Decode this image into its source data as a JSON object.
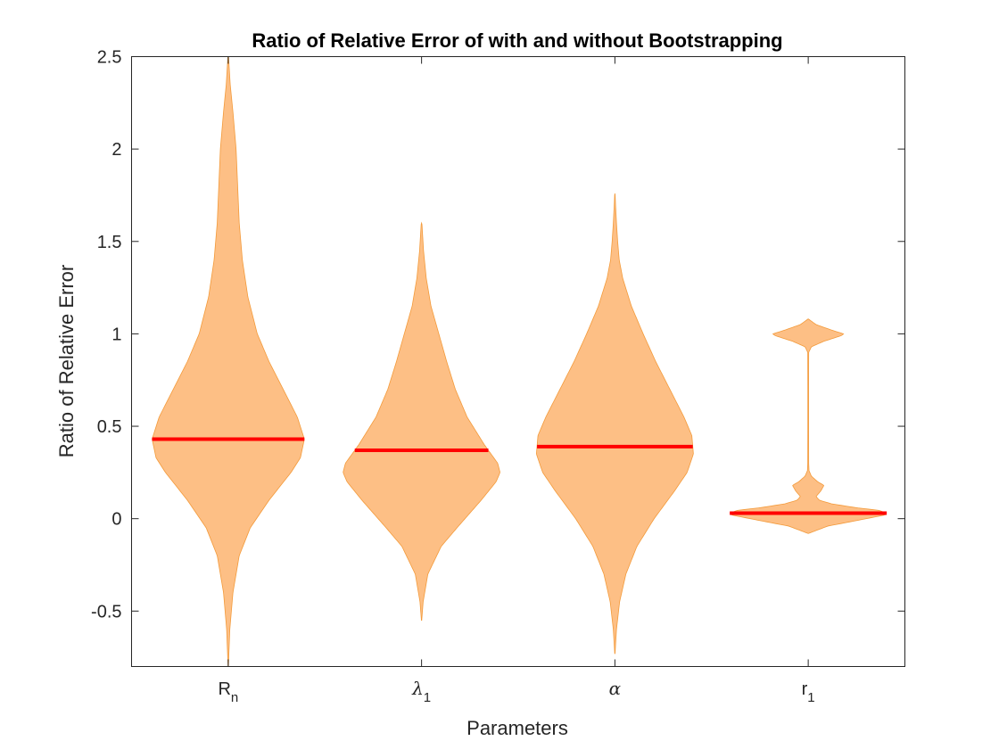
{
  "chart_data": {
    "type": "violin",
    "title": "Ratio of Relative Error of with and without Bootstrapping",
    "xlabel": "Parameters",
    "ylabel": "Ratio of Relative Error",
    "ylim": [
      -0.8,
      2.5
    ],
    "yticks": [
      {
        "value": -0.5,
        "label": "-0.5"
      },
      {
        "value": 0,
        "label": "0"
      },
      {
        "value": 0.5,
        "label": "0.5"
      },
      {
        "value": 1,
        "label": "1"
      },
      {
        "value": 1.5,
        "label": "1.5"
      },
      {
        "value": 2,
        "label": "2"
      },
      {
        "value": 2.5,
        "label": "2.5"
      }
    ],
    "grid": false,
    "fill_color": "#fdbf85",
    "edge_color": "#f39a3a",
    "median_color": "#ff0000",
    "categories": [
      {
        "base": "R",
        "sub": "n",
        "greek": false
      },
      {
        "base": "λ",
        "sub": "1",
        "greek": true
      },
      {
        "base": "α",
        "sub": "",
        "greek": true
      },
      {
        "base": "r",
        "sub": "1",
        "greek": false
      }
    ],
    "series": [
      {
        "median": 0.43,
        "min": -0.8,
        "max": 2.5,
        "density": [
          [
            -0.8,
            0.002
          ],
          [
            -0.6,
            0.02
          ],
          [
            -0.4,
            0.06
          ],
          [
            -0.2,
            0.14
          ],
          [
            -0.05,
            0.28
          ],
          [
            0.1,
            0.52
          ],
          [
            0.25,
            0.8
          ],
          [
            0.33,
            0.92
          ],
          [
            0.43,
            0.97
          ],
          [
            0.55,
            0.88
          ],
          [
            0.7,
            0.7
          ],
          [
            0.85,
            0.52
          ],
          [
            1.0,
            0.37
          ],
          [
            1.2,
            0.25
          ],
          [
            1.4,
            0.18
          ],
          [
            1.6,
            0.14
          ],
          [
            1.8,
            0.12
          ],
          [
            2.0,
            0.1
          ],
          [
            2.2,
            0.06
          ],
          [
            2.35,
            0.025
          ],
          [
            2.5,
            0.004
          ]
        ]
      },
      {
        "median": 0.37,
        "min": -0.55,
        "max": 1.6,
        "density": [
          [
            -0.55,
            0.002
          ],
          [
            -0.45,
            0.02
          ],
          [
            -0.3,
            0.08
          ],
          [
            -0.15,
            0.25
          ],
          [
            -0.05,
            0.45
          ],
          [
            0.1,
            0.76
          ],
          [
            0.2,
            0.95
          ],
          [
            0.25,
            1.0
          ],
          [
            0.3,
            0.97
          ],
          [
            0.4,
            0.8
          ],
          [
            0.55,
            0.58
          ],
          [
            0.7,
            0.43
          ],
          [
            0.85,
            0.32
          ],
          [
            1.0,
            0.22
          ],
          [
            1.15,
            0.12
          ],
          [
            1.3,
            0.06
          ],
          [
            1.45,
            0.025
          ],
          [
            1.6,
            0.004
          ]
        ]
      },
      {
        "median": 0.39,
        "min": -0.73,
        "max": 1.76,
        "density": [
          [
            -0.73,
            0.002
          ],
          [
            -0.6,
            0.02
          ],
          [
            -0.45,
            0.06
          ],
          [
            -0.3,
            0.14
          ],
          [
            -0.15,
            0.28
          ],
          [
            0.0,
            0.5
          ],
          [
            0.15,
            0.76
          ],
          [
            0.25,
            0.92
          ],
          [
            0.35,
            1.0
          ],
          [
            0.45,
            0.98
          ],
          [
            0.55,
            0.88
          ],
          [
            0.7,
            0.7
          ],
          [
            0.85,
            0.52
          ],
          [
            1.0,
            0.36
          ],
          [
            1.15,
            0.21
          ],
          [
            1.3,
            0.1
          ],
          [
            1.4,
            0.055
          ],
          [
            1.5,
            0.035
          ],
          [
            1.6,
            0.02
          ],
          [
            1.7,
            0.008
          ],
          [
            1.76,
            0.002
          ]
        ]
      },
      {
        "median": 0.03,
        "min": -0.08,
        "max": 1.08,
        "density": [
          [
            -0.08,
            0.002
          ],
          [
            -0.04,
            0.25
          ],
          [
            -0.01,
            0.62
          ],
          [
            0.02,
            0.98
          ],
          [
            0.03,
            1.0
          ],
          [
            0.045,
            0.9
          ],
          [
            0.06,
            0.6
          ],
          [
            0.08,
            0.3
          ],
          [
            0.1,
            0.14
          ],
          [
            0.12,
            0.1
          ],
          [
            0.15,
            0.16
          ],
          [
            0.18,
            0.2
          ],
          [
            0.2,
            0.12
          ],
          [
            0.23,
            0.04
          ],
          [
            0.26,
            0.01
          ],
          [
            0.3,
            0.006
          ],
          [
            0.5,
            0.005
          ],
          [
            0.7,
            0.005
          ],
          [
            0.9,
            0.006
          ],
          [
            0.93,
            0.04
          ],
          [
            0.96,
            0.2
          ],
          [
            0.99,
            0.42
          ],
          [
            1.0,
            0.45
          ],
          [
            1.02,
            0.3
          ],
          [
            1.05,
            0.1
          ],
          [
            1.08,
            0.003
          ]
        ]
      }
    ]
  }
}
